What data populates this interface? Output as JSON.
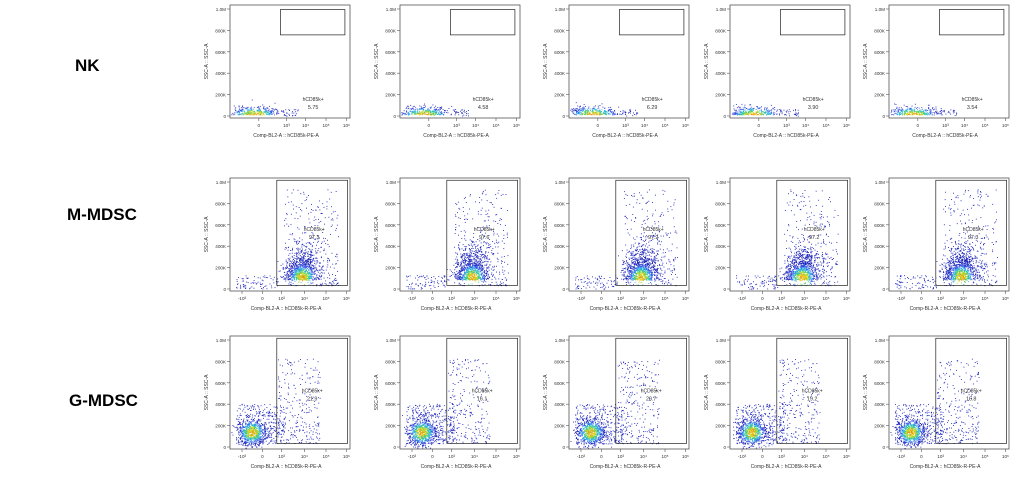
{
  "rows": [
    {
      "label": "NK",
      "xlabel": "Comp-BL2-A :: hCD85k-PE-A"
    },
    {
      "label": "M-MDSC",
      "xlabel": "Comp-BL2-A :: hCD85k-R-PE-A"
    },
    {
      "label": "G-MDSC",
      "xlabel": "Comp-BL2-A :: hCD85k-R-PE-A"
    }
  ],
  "chart_data": {
    "type": "scatter",
    "ylabel": "SSC-A :: SSC-A",
    "gate_name": "hCD85k+",
    "y_ticks": [
      "0",
      "200K",
      "400K",
      "600K",
      "800K",
      "1.0M"
    ],
    "x_ticks_nk": [
      "0",
      "10³",
      "10⁴",
      "10⁵",
      "10⁶"
    ],
    "x_ticks_mdsc": [
      "-10³",
      "0",
      "10³",
      "10⁴",
      "10⁵",
      "10⁶"
    ],
    "panels": [
      [
        {
          "gate_percent": "5.75"
        },
        {
          "gate_percent": "4.58"
        },
        {
          "gate_percent": "6.29"
        },
        {
          "gate_percent": "3.90"
        },
        {
          "gate_percent": "3.54"
        }
      ],
      [
        {
          "gate_percent": "97.3"
        },
        {
          "gate_percent": "97.6"
        },
        {
          "gate_percent": "97.2"
        },
        {
          "gate_percent": "97.2"
        },
        {
          "gate_percent": "97.3"
        }
      ],
      [
        {
          "gate_percent": "21.9"
        },
        {
          "gate_percent": "16.1"
        },
        {
          "gate_percent": "20.7"
        },
        {
          "gate_percent": "19.2"
        },
        {
          "gate_percent": "16.8"
        }
      ]
    ]
  }
}
